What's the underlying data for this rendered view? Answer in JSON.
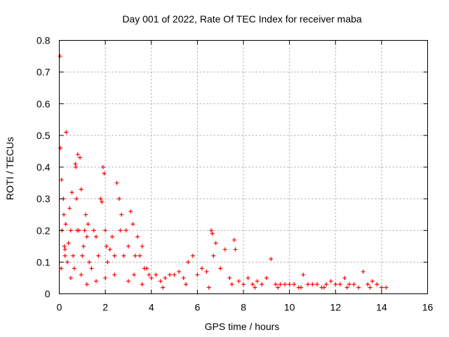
{
  "chart_data": {
    "type": "scatter",
    "title": "Day 001 of 2022, Rate Of TEC Index for receiver maba",
    "xlabel": "GPS time / hours",
    "ylabel": "ROTI / TECUs",
    "xlim": [
      0,
      16
    ],
    "ylim": [
      0,
      0.8
    ],
    "xticks": [
      "0",
      "2",
      "4",
      "6",
      "8",
      "10",
      "12",
      "14",
      "16"
    ],
    "yticks": [
      "0",
      "0.1",
      "0.2",
      "0.3",
      "0.4",
      "0.5",
      "0.6",
      "0.7",
      "0.8"
    ],
    "grid": true,
    "marker": "+",
    "series": [
      {
        "name": "ROTI",
        "color": "#ff0000",
        "x": [
          0.03,
          0.05,
          0.1,
          0.12,
          0.18,
          0.2,
          0.22,
          0.25,
          0.28,
          0.3,
          0.35,
          0.4,
          0.45,
          0.5,
          0.55,
          0.6,
          0.65,
          0.7,
          0.72,
          0.75,
          0.78,
          0.8,
          0.85,
          0.9,
          0.95,
          1.0,
          1.05,
          1.1,
          1.15,
          1.2,
          1.25,
          1.3,
          1.4,
          1.5,
          1.6,
          1.7,
          1.8,
          1.85,
          1.9,
          1.95,
          2.0,
          2.05,
          2.1,
          2.2,
          2.3,
          2.4,
          2.5,
          2.6,
          2.65,
          2.7,
          2.8,
          2.9,
          3.0,
          3.1,
          3.2,
          3.25,
          3.3,
          3.4,
          3.5,
          3.6,
          3.7,
          3.8,
          3.9,
          4.0,
          4.2,
          4.4,
          4.6,
          4.8,
          5.0,
          5.2,
          5.4,
          5.6,
          5.8,
          6.0,
          6.2,
          6.4,
          6.6,
          6.65,
          6.7,
          6.8,
          7.0,
          7.2,
          7.4,
          7.6,
          7.65,
          7.8,
          8.0,
          8.2,
          8.4,
          8.6,
          8.8,
          9.0,
          9.2,
          9.4,
          9.6,
          9.8,
          10.0,
          10.2,
          10.4,
          10.6,
          10.8,
          11.0,
          11.2,
          11.4,
          11.6,
          11.8,
          12.0,
          12.2,
          12.4,
          12.6,
          12.8,
          13.0,
          13.2,
          13.4,
          13.6,
          13.8,
          14.0,
          14.2,
          0.08,
          0.25,
          0.5,
          0.95,
          1.2,
          1.6,
          2.0,
          2.4,
          3.0,
          3.6,
          4.5,
          5.5,
          6.5,
          7.5,
          8.5,
          9.5,
          10.5,
          11.5,
          12.5,
          13.5
        ],
        "y": [
          0.75,
          0.46,
          0.36,
          0.2,
          0.3,
          0.25,
          0.15,
          0.14,
          0.22,
          0.51,
          0.1,
          0.16,
          0.27,
          0.2,
          0.32,
          0.12,
          0.08,
          0.41,
          0.4,
          0.3,
          0.2,
          0.44,
          0.2,
          0.43,
          0.33,
          0.12,
          0.15,
          0.2,
          0.25,
          0.18,
          0.22,
          0.1,
          0.08,
          0.2,
          0.18,
          0.12,
          0.3,
          0.29,
          0.4,
          0.38,
          0.2,
          0.15,
          0.1,
          0.14,
          0.18,
          0.12,
          0.35,
          0.3,
          0.2,
          0.25,
          0.12,
          0.2,
          0.15,
          0.26,
          0.22,
          0.06,
          0.12,
          0.18,
          0.12,
          0.15,
          0.08,
          0.08,
          0.06,
          0.05,
          0.06,
          0.04,
          0.05,
          0.06,
          0.06,
          0.07,
          0.05,
          0.1,
          0.12,
          0.06,
          0.08,
          0.07,
          0.2,
          0.19,
          0.12,
          0.16,
          0.08,
          0.14,
          0.05,
          0.17,
          0.14,
          0.04,
          0.03,
          0.05,
          0.03,
          0.04,
          0.03,
          0.05,
          0.11,
          0.03,
          0.03,
          0.03,
          0.03,
          0.03,
          0.02,
          0.06,
          0.03,
          0.03,
          0.03,
          0.02,
          0.03,
          0.04,
          0.03,
          0.03,
          0.05,
          0.03,
          0.03,
          0.02,
          0.07,
          0.03,
          0.04,
          0.03,
          0.02,
          0.02,
          0.08,
          0.12,
          0.05,
          0.06,
          0.03,
          0.04,
          0.05,
          0.06,
          0.04,
          0.03,
          0.02,
          0.03,
          0.02,
          0.03,
          0.02,
          0.02,
          0.02,
          0.02,
          0.02,
          0.02
        ]
      }
    ]
  }
}
